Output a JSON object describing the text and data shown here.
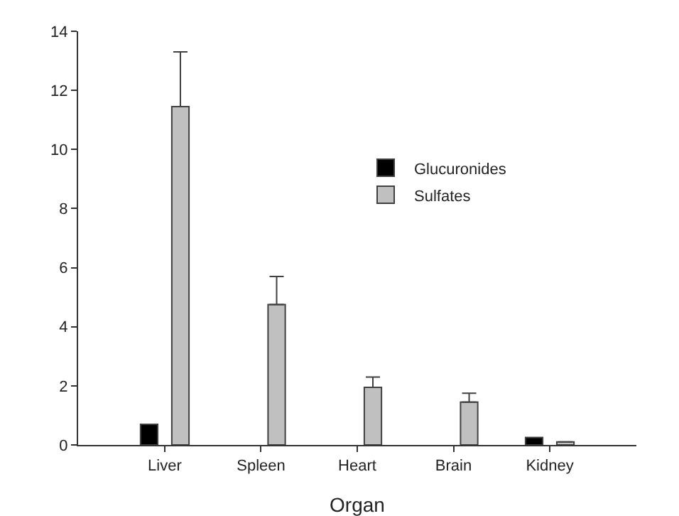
{
  "chart_data": {
    "type": "bar",
    "xlabel": "Organ",
    "categories": [
      "Liver",
      "Spleen",
      "Heart",
      "Brain",
      "Kidney"
    ],
    "series": [
      {
        "name": "Glucuronides",
        "color": "#000000",
        "values": [
          0.7,
          null,
          null,
          null,
          0.25
        ]
      },
      {
        "name": "Sulfates",
        "color": "#c0c0c0",
        "values": [
          11.45,
          4.75,
          1.95,
          1.45,
          0.1
        ],
        "errors": [
          1.85,
          0.95,
          0.35,
          0.3,
          null
        ]
      }
    ],
    "ylim": [
      0,
      14
    ],
    "yticks": [
      0,
      2,
      4,
      6,
      8,
      10,
      12,
      14
    ],
    "grid": false,
    "legend": "top right"
  }
}
